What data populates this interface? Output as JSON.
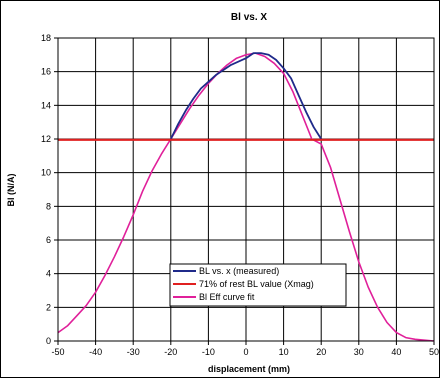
{
  "chart_data": {
    "type": "line",
    "title": "Bl vs. X",
    "xlabel": "displacement (mm)",
    "ylabel": "Bl (N/A)",
    "xlim": [
      -50,
      50
    ],
    "ylim": [
      0,
      18
    ],
    "xticks": [
      -50,
      -40,
      -30,
      -20,
      -10,
      0,
      10,
      20,
      30,
      40,
      50
    ],
    "yticks": [
      0,
      2,
      4,
      6,
      8,
      10,
      12,
      14,
      16,
      18
    ],
    "grid": true,
    "legend_position": "bottom-center",
    "series": [
      {
        "name": "BL vs. x (measured)",
        "color": "#1f2a8a",
        "x": [
          -20,
          -18,
          -16,
          -14,
          -12,
          -10,
          -8,
          -6,
          -4,
          -2,
          0,
          2,
          4,
          6,
          8,
          10,
          12,
          14,
          16,
          18,
          20
        ],
        "y": [
          12.0,
          12.9,
          13.7,
          14.4,
          15.0,
          15.4,
          15.8,
          16.1,
          16.4,
          16.6,
          16.8,
          17.1,
          17.1,
          17.0,
          16.7,
          16.2,
          15.6,
          14.6,
          13.6,
          12.7,
          12.0
        ]
      },
      {
        "name": "71% of rest BL value (Xmag)",
        "color": "#e02020",
        "x": [
          -50,
          50
        ],
        "y": [
          11.95,
          11.95
        ]
      },
      {
        "name": "Bl Eff curve fit",
        "color": "#e0209a",
        "x": [
          -50,
          -47.5,
          -45,
          -42.5,
          -40,
          -37.5,
          -35,
          -32.5,
          -30,
          -27.5,
          -25,
          -22.5,
          -20,
          -17.5,
          -15,
          -12.5,
          -10,
          -7.5,
          -5,
          -2.5,
          0,
          2.5,
          5,
          7.5,
          10,
          12.5,
          15,
          17.5,
          20,
          22.5,
          25,
          27.5,
          30,
          32.5,
          35,
          37.5,
          40,
          42.5,
          45,
          47.5,
          50
        ],
        "y": [
          0.5,
          0.9,
          1.5,
          2.1,
          2.9,
          3.9,
          5.0,
          6.2,
          7.5,
          8.9,
          10.1,
          11.1,
          12.0,
          12.9,
          13.8,
          14.6,
          15.3,
          15.9,
          16.4,
          16.8,
          17.0,
          17.1,
          16.9,
          16.5,
          15.9,
          14.8,
          13.4,
          12.0,
          11.7,
          10.3,
          8.4,
          6.5,
          4.7,
          3.2,
          2.0,
          1.1,
          0.5,
          0.2,
          0.1,
          0.05,
          0.0
        ]
      }
    ]
  }
}
